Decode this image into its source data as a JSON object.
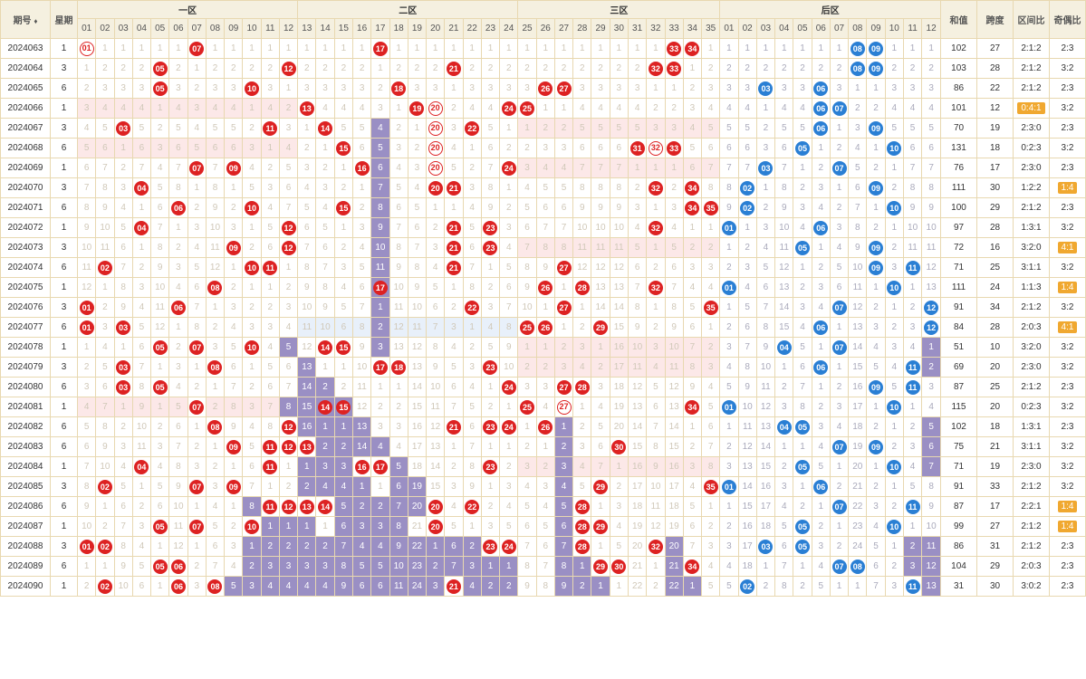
{
  "headers": {
    "period": "期号",
    "week": "星期",
    "zones": [
      "一区",
      "二区",
      "三区",
      "后区"
    ],
    "sum": "和值",
    "span": "跨度",
    "zoneRatio": "区间比",
    "oddRatio": "奇偶比"
  },
  "frontNums": [
    "01",
    "02",
    "03",
    "04",
    "05",
    "06",
    "07",
    "08",
    "09",
    "10",
    "11",
    "12",
    "13",
    "14",
    "15",
    "16",
    "17",
    "18",
    "19",
    "20",
    "21",
    "22",
    "23",
    "24",
    "25",
    "26",
    "27",
    "28",
    "29",
    "30",
    "31",
    "32",
    "33",
    "34",
    "35"
  ],
  "backNums": [
    "01",
    "02",
    "03",
    "04",
    "05",
    "06",
    "07",
    "08",
    "09",
    "10",
    "11",
    "12"
  ],
  "colors": {
    "redBall": "#d22",
    "blueBall": "#2a7fd4",
    "streak": "#9a8fc4",
    "pink": "#fce8e8",
    "ltblue": "#e8f0fa",
    "border": "#e8d8b0",
    "headerBg": "#f5f0e0",
    "dimText": "#d0c8b8",
    "highlight": "#f0a830"
  },
  "rows": [
    {
      "period": "2024063",
      "week": "1",
      "front": [
        7,
        17,
        33,
        34
      ],
      "frontOutline": [
        1
      ],
      "back": [
        8,
        9
      ],
      "backStreak": [],
      "sum": "102",
      "span": "27",
      "zr": "2:1:2",
      "or": "2:3",
      "pinkF": [],
      "blueF": [],
      "hl": ""
    },
    {
      "period": "2024064",
      "week": "3",
      "front": [
        5,
        12,
        21,
        32,
        33
      ],
      "frontOutline": [],
      "back": [
        8,
        9
      ],
      "backStreak": [],
      "sum": "103",
      "span": "28",
      "zr": "2:1:2",
      "or": "3:2",
      "pinkF": [],
      "blueF": [],
      "hl": ""
    },
    {
      "period": "2024065",
      "week": "6",
      "front": [
        5,
        10,
        18,
        26,
        27
      ],
      "frontOutline": [],
      "back": [
        3,
        6
      ],
      "backStreak": [],
      "sum": "86",
      "span": "22",
      "zr": "2:1:2",
      "or": "2:3",
      "pinkF": [],
      "blueF": [],
      "hl": ""
    },
    {
      "period": "2024066",
      "week": "1",
      "front": [
        13,
        19,
        24,
        25
      ],
      "frontOutline": [
        20
      ],
      "back": [
        6,
        7
      ],
      "backStreak": [],
      "sum": "101",
      "span": "12",
      "zr": "0:4:1",
      "or": "3:2",
      "pinkF": [
        1,
        2,
        3,
        4,
        5,
        6,
        7,
        8,
        9,
        10,
        11,
        12
      ],
      "blueF": [],
      "hl": "zr"
    },
    {
      "period": "2024067",
      "week": "3",
      "front": [
        3,
        11,
        14,
        22
      ],
      "frontOutline": [
        20
      ],
      "back": [
        6,
        9
      ],
      "backStreak": [
        17
      ],
      "sum": "70",
      "span": "19",
      "zr": "2:3:0",
      "or": "2:3",
      "pinkF": [
        25,
        26,
        27,
        28,
        29,
        30,
        31,
        32,
        33,
        34,
        35
      ],
      "blueF": [],
      "hl": ""
    },
    {
      "period": "2024068",
      "week": "6",
      "front": [
        15,
        31,
        33
      ],
      "frontOutline": [
        20,
        32
      ],
      "back": [
        5,
        10
      ],
      "backStreak": [
        17
      ],
      "sum": "131",
      "span": "18",
      "zr": "0:2:3",
      "or": "3:2",
      "pinkF": [
        1,
        2,
        3,
        4,
        5,
        6,
        7,
        8,
        9,
        10,
        11,
        12
      ],
      "blueF": [],
      "hl": ""
    },
    {
      "period": "2024069",
      "week": "1",
      "front": [
        7,
        9,
        16,
        24
      ],
      "frontOutline": [
        20
      ],
      "back": [
        3,
        7
      ],
      "backStreak": [
        17
      ],
      "sum": "76",
      "span": "17",
      "zr": "2:3:0",
      "or": "2:3",
      "pinkF": [
        25,
        26,
        27,
        28,
        29,
        30,
        31,
        32,
        33,
        34,
        35
      ],
      "blueF": [],
      "hl": ""
    },
    {
      "period": "2024070",
      "week": "3",
      "front": [
        4,
        20,
        21,
        32,
        34
      ],
      "frontOutline": [],
      "back": [
        2,
        9
      ],
      "backStreak": [
        17
      ],
      "sum": "111",
      "span": "30",
      "zr": "1:2:2",
      "or": "1:4",
      "pinkF": [],
      "blueF": [],
      "hl": "or"
    },
    {
      "period": "2024071",
      "week": "6",
      "front": [
        6,
        10,
        15,
        34,
        35
      ],
      "frontOutline": [],
      "back": [
        2,
        10
      ],
      "backStreak": [
        17
      ],
      "sum": "100",
      "span": "29",
      "zr": "2:1:2",
      "or": "2:3",
      "pinkF": [],
      "blueF": [],
      "hl": ""
    },
    {
      "period": "2024072",
      "week": "1",
      "front": [
        4,
        12,
        21,
        23,
        32
      ],
      "frontOutline": [],
      "back": [
        1,
        6
      ],
      "backStreak": [
        17
      ],
      "sum": "97",
      "span": "28",
      "zr": "1:3:1",
      "or": "3:2",
      "pinkF": [],
      "blueF": [],
      "hl": ""
    },
    {
      "period": "2024073",
      "week": "3",
      "front": [
        9,
        12,
        21,
        23
      ],
      "frontOutline": [],
      "back": [
        5,
        9
      ],
      "backStreak": [
        17
      ],
      "sum": "72",
      "span": "16",
      "zr": "3:2:0",
      "or": "4:1",
      "pinkF": [
        25,
        26,
        27,
        28,
        29,
        30,
        31,
        32,
        33,
        34,
        35
      ],
      "blueF": [],
      "hl": "or"
    },
    {
      "period": "2024074",
      "week": "6",
      "front": [
        2,
        10,
        11,
        21,
        27
      ],
      "frontOutline": [],
      "back": [
        9,
        11
      ],
      "backStreak": [
        17
      ],
      "sum": "71",
      "span": "25",
      "zr": "3:1:1",
      "or": "3:2",
      "pinkF": [],
      "blueF": [],
      "hl": ""
    },
    {
      "period": "2024075",
      "week": "1",
      "front": [
        8,
        17,
        26,
        28,
        32
      ],
      "frontOutline": [],
      "back": [
        1,
        10
      ],
      "backStreak": [
        17
      ],
      "sum": "111",
      "span": "24",
      "zr": "1:1:3",
      "or": "1:4",
      "pinkF": [],
      "blueF": [],
      "hl": "or"
    },
    {
      "period": "2024076",
      "week": "3",
      "front": [
        1,
        6,
        22,
        27,
        35
      ],
      "frontOutline": [],
      "back": [
        7,
        12
      ],
      "backStreak": [
        17
      ],
      "sum": "91",
      "span": "34",
      "zr": "2:1:2",
      "or": "3:2",
      "pinkF": [],
      "blueF": [],
      "hl": ""
    },
    {
      "period": "2024077",
      "week": "6",
      "front": [
        1,
        3,
        25,
        26,
        29
      ],
      "frontOutline": [],
      "back": [
        6,
        12
      ],
      "backStreak": [
        17
      ],
      "sum": "84",
      "span": "28",
      "zr": "2:0:3",
      "or": "4:1",
      "pinkF": [],
      "blueF": [
        13,
        14,
        15,
        16,
        17,
        18,
        19,
        20,
        21,
        22,
        23,
        24
      ],
      "hl": "or"
    },
    {
      "period": "2024078",
      "week": "1",
      "front": [
        5,
        7,
        10,
        14,
        15
      ],
      "frontOutline": [],
      "back": [
        4,
        7
      ],
      "backStreak": [
        17,
        12
      ],
      "backStreakB": [
        12
      ],
      "sum": "51",
      "span": "10",
      "zr": "3:2:0",
      "or": "3:2",
      "pinkF": [
        25,
        26,
        27,
        28,
        29,
        30,
        31,
        32,
        33,
        34,
        35
      ],
      "blueF": [],
      "hl": ""
    },
    {
      "period": "2024079",
      "week": "3",
      "front": [
        3,
        8,
        17,
        18,
        23
      ],
      "frontOutline": [],
      "back": [
        6,
        11
      ],
      "backStreak": [
        13
      ],
      "backStreakB": [
        12
      ],
      "sum": "69",
      "span": "20",
      "zr": "2:3:0",
      "or": "3:2",
      "pinkF": [
        25,
        26,
        27,
        28,
        29,
        30,
        31,
        32,
        33,
        34,
        35
      ],
      "blueF": [],
      "hl": ""
    },
    {
      "period": "2024080",
      "week": "6",
      "front": [
        3,
        5,
        24,
        27,
        28
      ],
      "frontOutline": [],
      "back": [
        9,
        11
      ],
      "backStreak": [
        13,
        14
      ],
      "backStreakB": [],
      "sum": "87",
      "span": "25",
      "zr": "2:1:2",
      "or": "2:3",
      "pinkF": [],
      "blueF": [],
      "hl": ""
    },
    {
      "period": "2024081",
      "week": "1",
      "front": [
        7,
        14,
        15,
        25,
        34
      ],
      "frontOutline": [
        27
      ],
      "back": [
        1,
        10
      ],
      "backStreak": [
        12,
        13,
        14,
        15
      ],
      "sum": "115",
      "span": "20",
      "zr": "0:2:3",
      "or": "3:2",
      "pinkF": [
        1,
        2,
        3,
        4,
        5,
        6,
        7,
        8,
        9,
        10,
        11,
        12
      ],
      "blueF": [],
      "hl": ""
    },
    {
      "period": "2024082",
      "week": "6",
      "front": [
        8,
        12,
        21,
        23,
        24,
        26
      ],
      "frontOutline": [],
      "back": [
        4,
        5
      ],
      "backStreak": [
        13,
        14,
        15,
        16,
        27
      ],
      "backStreakB": [
        12
      ],
      "sum": "102",
      "span": "18",
      "zr": "1:3:1",
      "or": "2:3",
      "pinkF": [],
      "blueF": [],
      "hl": ""
    },
    {
      "period": "2024083",
      "week": "6",
      "front": [
        9,
        11,
        12,
        13,
        30
      ],
      "frontOutline": [],
      "back": [
        7,
        9
      ],
      "backStreak": [
        14,
        15,
        16,
        17,
        27
      ],
      "backStreakB": [
        12
      ],
      "sum": "75",
      "span": "21",
      "zr": "3:1:1",
      "or": "3:2",
      "pinkF": [],
      "blueF": [],
      "hl": ""
    },
    {
      "period": "2024084",
      "week": "1",
      "front": [
        4,
        16,
        17,
        11,
        23
      ],
      "frontOutline": [],
      "back": [
        5,
        10
      ],
      "backStreak": [
        13,
        14,
        15,
        18,
        27
      ],
      "backStreakB": [
        12
      ],
      "sum": "71",
      "span": "19",
      "zr": "2:3:0",
      "or": "3:2",
      "pinkF": [
        25,
        26,
        27,
        28,
        29,
        30,
        31,
        32,
        33,
        34,
        35
      ],
      "blueF": [],
      "hl": ""
    },
    {
      "period": "2024085",
      "week": "3",
      "front": [
        2,
        7,
        9,
        29,
        35
      ],
      "frontOutline": [],
      "back": [
        1,
        6
      ],
      "backStreak": [
        13,
        14,
        15,
        16,
        18,
        19,
        27
      ],
      "backStreakB": [],
      "sum": "91",
      "span": "33",
      "zr": "2:1:2",
      "or": "3:2",
      "pinkF": [],
      "blueF": [],
      "hl": ""
    },
    {
      "period": "2024086",
      "week": "6",
      "front": [
        11,
        12,
        13,
        14,
        20,
        22,
        28
      ],
      "frontOutline": [],
      "back": [
        7,
        11
      ],
      "backStreak": [
        10,
        15,
        16,
        17,
        18,
        19,
        27
      ],
      "backStreakB": [],
      "sum": "87",
      "span": "17",
      "zr": "2:2:1",
      "or": "1:4",
      "pinkF": [],
      "blueF": [],
      "hl": "or"
    },
    {
      "period": "2024087",
      "week": "1",
      "front": [
        5,
        7,
        10,
        20,
        28,
        29
      ],
      "frontOutline": [],
      "back": [
        5,
        10
      ],
      "backStreak": [
        11,
        12,
        13,
        15,
        16,
        17,
        18,
        27
      ],
      "backStreakB": [],
      "sum": "99",
      "span": "27",
      "zr": "2:1:2",
      "or": "1:4",
      "pinkF": [],
      "blueF": [],
      "hl": "or"
    },
    {
      "period": "2024088",
      "week": "3",
      "front": [
        1,
        2,
        23,
        24,
        28,
        32
      ],
      "frontOutline": [],
      "back": [
        3,
        5
      ],
      "backStreak": [
        10,
        11,
        12,
        13,
        14,
        15,
        16,
        17,
        18,
        19,
        20,
        21,
        22,
        27,
        33
      ],
      "backStreakB": [
        11,
        12
      ],
      "sum": "86",
      "span": "31",
      "zr": "2:1:2",
      "or": "2:3",
      "pinkF": [],
      "blueF": [],
      "hl": ""
    },
    {
      "period": "2024089",
      "week": "6",
      "front": [
        5,
        6,
        29,
        30,
        34
      ],
      "frontOutline": [],
      "back": [
        7,
        8
      ],
      "backStreak": [
        10,
        11,
        12,
        13,
        14,
        15,
        16,
        17,
        18,
        19,
        20,
        21,
        22,
        23,
        24,
        27,
        28,
        33
      ],
      "backStreakB": [
        11,
        12
      ],
      "sum": "104",
      "span": "29",
      "zr": "2:0:3",
      "or": "2:3",
      "pinkF": [],
      "blueF": [
        13,
        14,
        15,
        16,
        17,
        18,
        19,
        20,
        21,
        22,
        23,
        24
      ],
      "hl": ""
    },
    {
      "period": "2024090",
      "week": "1",
      "front": [
        2,
        6,
        8,
        21
      ],
      "frontOutline": [],
      "back": [
        2,
        11
      ],
      "backStreak": [
        9,
        10,
        11,
        12,
        13,
        14,
        15,
        16,
        17,
        18,
        19,
        20,
        22,
        23,
        24,
        27,
        28,
        29,
        33,
        34
      ],
      "backStreakB": [
        12
      ],
      "sum": "31",
      "span": "30",
      "zr": "3:0:2",
      "or": "2:3",
      "pinkF": [],
      "blueF": [],
      "hl": ""
    }
  ]
}
